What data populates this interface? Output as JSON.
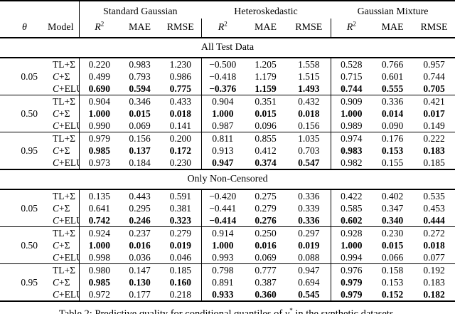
{
  "table": {
    "header": {
      "theta_label": "θ",
      "model_label": "Model",
      "groups": [
        "Standard Gaussian",
        "Heteroskedastic",
        "Gaussian Mixture"
      ],
      "metrics": [
        {
          "base": "R",
          "sup": "2",
          "italic": true
        },
        {
          "base": "MAE",
          "sup": "",
          "italic": false
        },
        {
          "base": "RMSE",
          "sup": "",
          "italic": false
        }
      ]
    },
    "sections": [
      {
        "title": "All Test Data",
        "blocks": [
          {
            "theta": "0.05",
            "rows": [
              {
                "model": "TL+Σ",
                "values": [
                  "0.220",
                  "0.983",
                  "1.230",
                  "−0.500",
                  "1.205",
                  "1.558",
                  "0.528",
                  "0.766",
                  "0.957"
                ],
                "bold": [
                  0,
                  0,
                  0,
                  0,
                  0,
                  0,
                  0,
                  0,
                  0
                ]
              },
              {
                "model": "C+Σ",
                "values": [
                  "0.499",
                  "0.793",
                  "0.986",
                  "−0.418",
                  "1.179",
                  "1.515",
                  "0.715",
                  "0.601",
                  "0.744"
                ],
                "bold": [
                  0,
                  0,
                  0,
                  0,
                  0,
                  0,
                  0,
                  0,
                  0
                ]
              },
              {
                "model": "C+ELU",
                "values": [
                  "0.690",
                  "0.594",
                  "0.775",
                  "−0.376",
                  "1.159",
                  "1.493",
                  "0.744",
                  "0.555",
                  "0.705"
                ],
                "bold": [
                  1,
                  1,
                  1,
                  1,
                  1,
                  1,
                  1,
                  1,
                  1
                ]
              }
            ]
          },
          {
            "theta": "0.50",
            "rows": [
              {
                "model": "TL+Σ",
                "values": [
                  "0.904",
                  "0.346",
                  "0.433",
                  "0.904",
                  "0.351",
                  "0.432",
                  "0.909",
                  "0.336",
                  "0.421"
                ],
                "bold": [
                  0,
                  0,
                  0,
                  0,
                  0,
                  0,
                  0,
                  0,
                  0
                ]
              },
              {
                "model": "C+Σ",
                "values": [
                  "1.000",
                  "0.015",
                  "0.018",
                  "1.000",
                  "0.015",
                  "0.018",
                  "1.000",
                  "0.014",
                  "0.017"
                ],
                "bold": [
                  1,
                  1,
                  1,
                  1,
                  1,
                  1,
                  1,
                  1,
                  1
                ]
              },
              {
                "model": "C+ELU",
                "values": [
                  "0.990",
                  "0.069",
                  "0.141",
                  "0.987",
                  "0.096",
                  "0.156",
                  "0.989",
                  "0.090",
                  "0.149"
                ],
                "bold": [
                  0,
                  0,
                  0,
                  0,
                  0,
                  0,
                  0,
                  0,
                  0
                ]
              }
            ]
          },
          {
            "theta": "0.95",
            "rows": [
              {
                "model": "TL+Σ",
                "values": [
                  "0.979",
                  "0.156",
                  "0.200",
                  "0.811",
                  "0.855",
                  "1.035",
                  "0.974",
                  "0.176",
                  "0.222"
                ],
                "bold": [
                  0,
                  0,
                  0,
                  0,
                  0,
                  0,
                  0,
                  0,
                  0
                ]
              },
              {
                "model": "C+Σ",
                "values": [
                  "0.985",
                  "0.137",
                  "0.172",
                  "0.913",
                  "0.412",
                  "0.703",
                  "0.983",
                  "0.153",
                  "0.183"
                ],
                "bold": [
                  1,
                  1,
                  1,
                  0,
                  0,
                  0,
                  1,
                  1,
                  1
                ]
              },
              {
                "model": "C+ELU",
                "values": [
                  "0.973",
                  "0.184",
                  "0.230",
                  "0.947",
                  "0.374",
                  "0.547",
                  "0.982",
                  "0.155",
                  "0.185"
                ],
                "bold": [
                  0,
                  0,
                  0,
                  1,
                  1,
                  1,
                  0,
                  0,
                  0
                ]
              }
            ]
          }
        ]
      },
      {
        "title": "Only Non-Censored",
        "blocks": [
          {
            "theta": "0.05",
            "rows": [
              {
                "model": "TL+Σ",
                "values": [
                  "0.135",
                  "0.443",
                  "0.591",
                  "−0.420",
                  "0.275",
                  "0.336",
                  "0.422",
                  "0.402",
                  "0.535"
                ],
                "bold": [
                  0,
                  0,
                  0,
                  0,
                  0,
                  0,
                  0,
                  0,
                  0
                ]
              },
              {
                "model": "C+Σ",
                "values": [
                  "0.641",
                  "0.295",
                  "0.381",
                  "−0.441",
                  "0.279",
                  "0.339",
                  "0.585",
                  "0.347",
                  "0.453"
                ],
                "bold": [
                  0,
                  0,
                  0,
                  0,
                  0,
                  0,
                  0,
                  0,
                  0
                ]
              },
              {
                "model": "C+ELU",
                "values": [
                  "0.742",
                  "0.246",
                  "0.323",
                  "−0.414",
                  "0.276",
                  "0.336",
                  "0.602",
                  "0.340",
                  "0.444"
                ],
                "bold": [
                  1,
                  1,
                  1,
                  1,
                  1,
                  1,
                  1,
                  1,
                  1
                ]
              }
            ]
          },
          {
            "theta": "0.50",
            "rows": [
              {
                "model": "TL+Σ",
                "values": [
                  "0.924",
                  "0.237",
                  "0.279",
                  "0.914",
                  "0.250",
                  "0.297",
                  "0.928",
                  "0.230",
                  "0.272"
                ],
                "bold": [
                  0,
                  0,
                  0,
                  0,
                  0,
                  0,
                  0,
                  0,
                  0
                ]
              },
              {
                "model": "C+Σ",
                "values": [
                  "1.000",
                  "0.016",
                  "0.019",
                  "1.000",
                  "0.016",
                  "0.019",
                  "1.000",
                  "0.015",
                  "0.018"
                ],
                "bold": [
                  1,
                  1,
                  1,
                  1,
                  1,
                  1,
                  1,
                  1,
                  1
                ]
              },
              {
                "model": "C+ELU",
                "values": [
                  "0.998",
                  "0.036",
                  "0.046",
                  "0.993",
                  "0.069",
                  "0.088",
                  "0.994",
                  "0.066",
                  "0.077"
                ],
                "bold": [
                  0,
                  0,
                  0,
                  0,
                  0,
                  0,
                  0,
                  0,
                  0
                ]
              }
            ]
          },
          {
            "theta": "0.95",
            "rows": [
              {
                "model": "TL+Σ",
                "values": [
                  "0.980",
                  "0.147",
                  "0.185",
                  "0.798",
                  "0.777",
                  "0.947",
                  "0.976",
                  "0.158",
                  "0.192"
                ],
                "bold": [
                  0,
                  0,
                  0,
                  0,
                  0,
                  0,
                  0,
                  0,
                  0
                ]
              },
              {
                "model": "C+Σ",
                "values": [
                  "0.985",
                  "0.130",
                  "0.160",
                  "0.891",
                  "0.387",
                  "0.694",
                  "0.979",
                  "0.153",
                  "0.183"
                ],
                "bold": [
                  1,
                  1,
                  1,
                  0,
                  0,
                  0,
                  1,
                  0,
                  0
                ]
              },
              {
                "model": "C+ELU",
                "values": [
                  "0.972",
                  "0.177",
                  "0.218",
                  "0.933",
                  "0.360",
                  "0.545",
                  "0.979",
                  "0.152",
                  "0.182"
                ],
                "bold": [
                  0,
                  0,
                  0,
                  1,
                  1,
                  1,
                  1,
                  1,
                  1
                ]
              }
            ]
          }
        ]
      }
    ]
  },
  "caption": {
    "prefix": "Table 2: Predictive quality for conditional quantiles of ",
    "variable": "y",
    "variable_sup": "*",
    "suffix": " in the synthetic datasets."
  }
}
